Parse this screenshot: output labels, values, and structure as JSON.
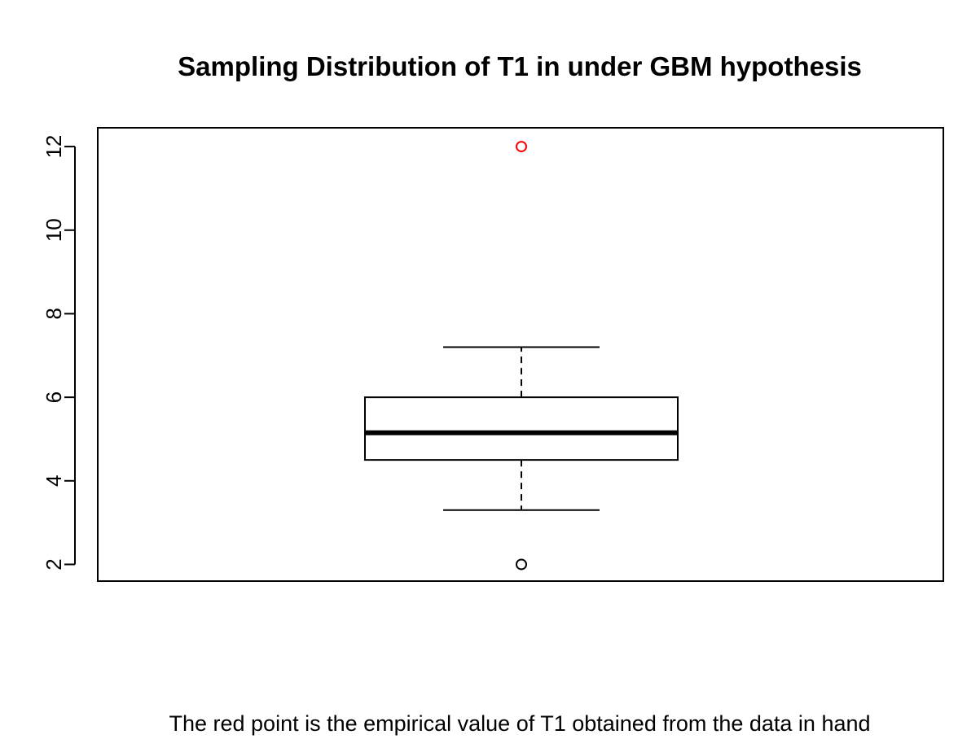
{
  "chart_data": {
    "type": "boxplot",
    "title": "Sampling Distribution of T1 in under GBM hypothesis",
    "caption": "The red point is the empirical value of T1 obtained from the data in hand",
    "xlabel": "",
    "ylabel": "",
    "ylim": [
      1.6,
      12.45
    ],
    "y_ticks": [
      2,
      4,
      6,
      8,
      10,
      12
    ],
    "grid": false,
    "box": {
      "whisker_low": 3.3,
      "q1": 4.5,
      "median": 5.15,
      "q3": 6.0,
      "whisker_high": 7.2
    },
    "outliers": [
      {
        "value": 2.0,
        "color": "#000000"
      }
    ],
    "empirical_point": {
      "value": 12.0,
      "color": "#ff0000"
    }
  }
}
